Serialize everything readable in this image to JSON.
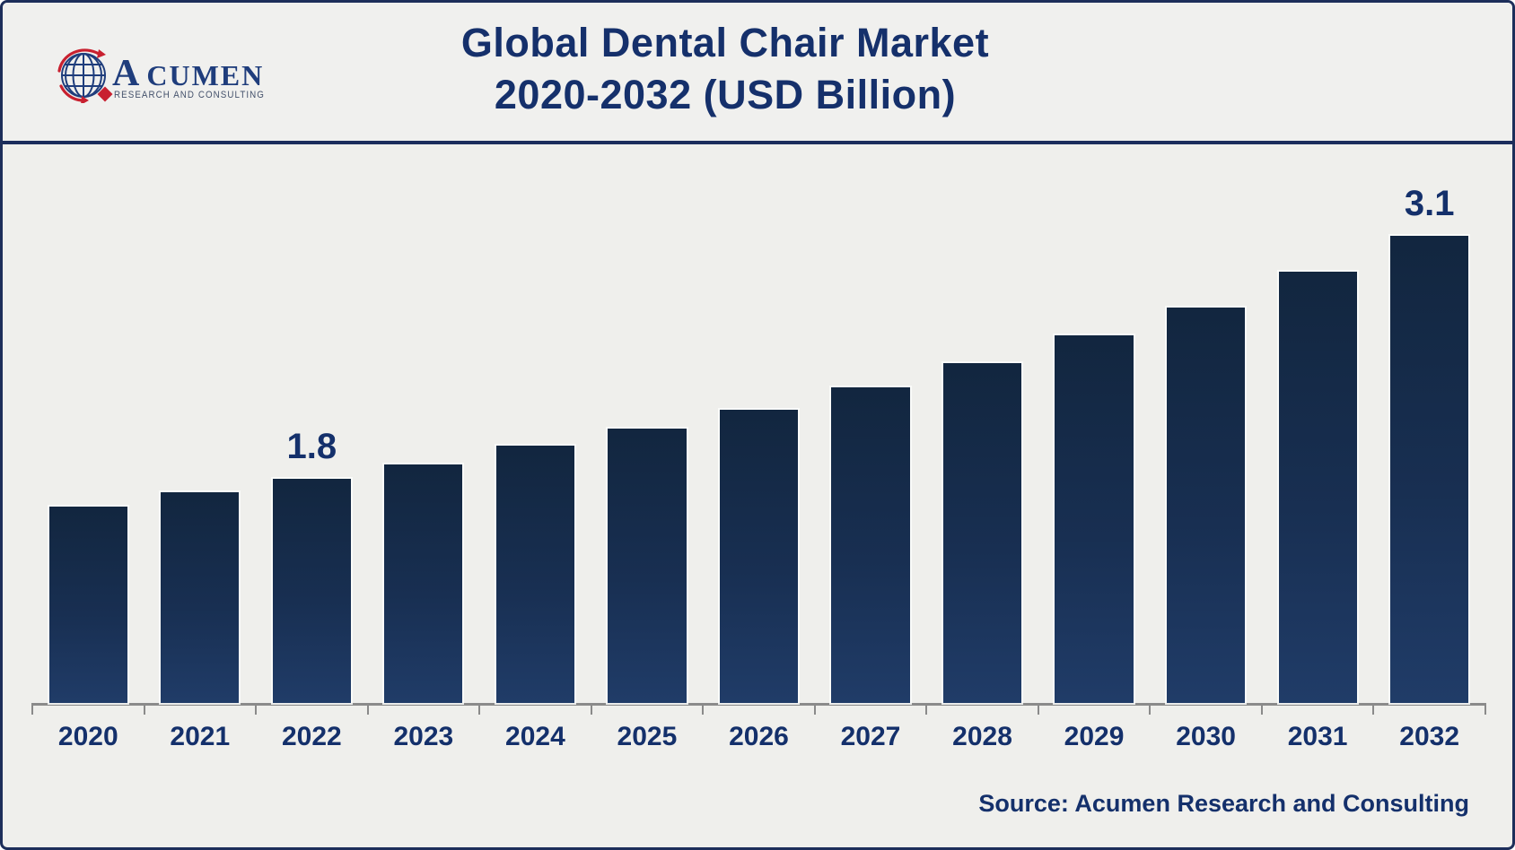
{
  "header": {
    "title_line1": "Global Dental Chair Market",
    "title_line2": "2020-2032 (USD Billion)",
    "logo": {
      "name": "ACUMEN",
      "name_initial": "A",
      "name_rest": "CUMEN",
      "tagline": "RESEARCH AND CONSULTING",
      "globe_icon": "globe-with-red-orbit-arrows-and-diamond",
      "navy": "#1f3d7c",
      "red": "#c8202f"
    }
  },
  "chart_data": {
    "type": "bar",
    "title": "Global Dental Chair Market 2020-2032 (USD Billion)",
    "xlabel": "",
    "ylabel": "",
    "unit": "USD Billion",
    "categories": [
      "2020",
      "2021",
      "2022",
      "2023",
      "2024",
      "2025",
      "2026",
      "2027",
      "2028",
      "2029",
      "2030",
      "2031",
      "2032"
    ],
    "values": [
      1.65,
      1.73,
      1.8,
      1.88,
      1.98,
      2.07,
      2.17,
      2.29,
      2.42,
      2.57,
      2.72,
      2.91,
      3.1
    ],
    "data_labels": [
      "",
      "",
      "1.8",
      "",
      "",
      "",
      "",
      "",
      "",
      "",
      "",
      "",
      "3.1"
    ],
    "ylim": [
      0.6,
      3.4
    ],
    "grid": false,
    "legend": false,
    "value_axis_visible": false,
    "bar_color_top": "#12263f",
    "bar_color_bottom": "#203c68",
    "axis_color": "#8a8a8a",
    "label_color": "#14306b",
    "background_color": "#efefec",
    "tick_count": 14
  },
  "footer": {
    "source": "Source: Acumen Research and Consulting"
  }
}
